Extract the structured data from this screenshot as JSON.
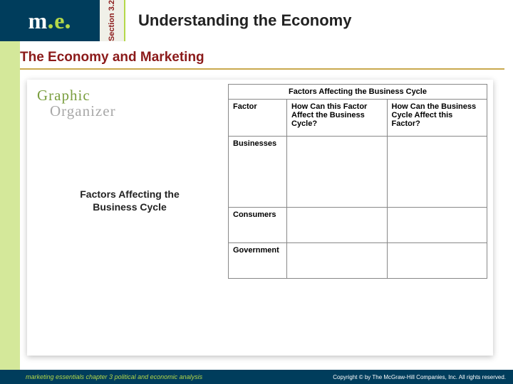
{
  "header": {
    "logo_m": "m",
    "logo_e": "e",
    "section_label": "Section 3.2",
    "title": "Understanding the Economy"
  },
  "subtitle": "The Economy and Marketing",
  "graphic_organizer": {
    "word1": "Graphic",
    "word2": "Organizer"
  },
  "caption": "Factors Affecting the Business Cycle",
  "table": {
    "title": "Factors Affecting the Business Cycle",
    "headers": {
      "col1": "Factor",
      "col2": "How Can this Factor Affect the Business Cycle?",
      "col3": "How Can the Business Cycle Affect this Factor?"
    },
    "rows": [
      {
        "factor": "Businesses",
        "c2": "",
        "c3": ""
      },
      {
        "factor": "Consumers",
        "c2": "",
        "c3": ""
      },
      {
        "factor": "Government",
        "c2": "",
        "c3": ""
      }
    ]
  },
  "footer": {
    "left": "marketing essentials  chapter 3  political and economic analysis",
    "right": "Copyright © by The McGraw-Hill Companies, Inc. All rights reserved."
  },
  "colors": {
    "navy": "#003d5c",
    "lime_band": "#d4e89a",
    "lime": "#b4d849",
    "maroon": "#8b1a1a",
    "gold": "#c9a94e",
    "olive": "#7a9e3f",
    "gray": "#a8a8a8"
  }
}
